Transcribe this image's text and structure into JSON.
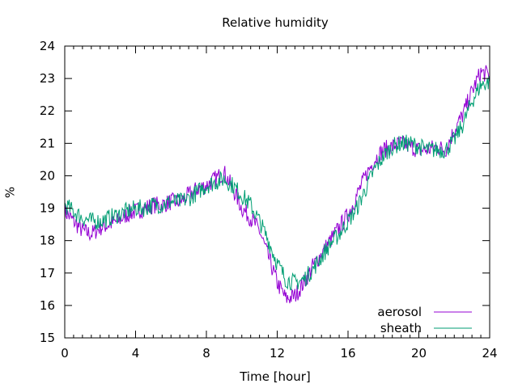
{
  "chart_data": {
    "type": "line",
    "title": "Relative humidity",
    "xlabel": "Time [hour]",
    "ylabel": "%",
    "xlim": [
      0,
      24
    ],
    "ylim": [
      15,
      24
    ],
    "x_ticks": [
      0,
      4,
      8,
      12,
      16,
      20,
      24
    ],
    "y_ticks": [
      15,
      16,
      17,
      18,
      19,
      20,
      21,
      22,
      23,
      24
    ],
    "grid": false,
    "legend_position": "bottom-right",
    "series": [
      {
        "name": "aerosol",
        "color": "#9400d3",
        "x": [
          0,
          0.5,
          1,
          1.5,
          2,
          2.5,
          3,
          3.5,
          4,
          4.5,
          5,
          5.5,
          6,
          6.5,
          7,
          7.5,
          8,
          8.5,
          9,
          9.5,
          10,
          10.5,
          11,
          11.5,
          12,
          12.5,
          13,
          13.5,
          14,
          14.5,
          15,
          15.5,
          16,
          16.5,
          17,
          17.5,
          18,
          18.5,
          19,
          19.5,
          20,
          20.5,
          21,
          21.5,
          22,
          22.5,
          23,
          23.5,
          24
        ],
        "values": [
          18.9,
          18.6,
          18.3,
          18.2,
          18.4,
          18.5,
          18.6,
          18.8,
          18.9,
          19.0,
          19.1,
          19.1,
          19.2,
          19.2,
          19.4,
          19.6,
          19.7,
          19.9,
          20.1,
          19.6,
          19.0,
          18.7,
          18.3,
          17.5,
          16.7,
          16.2,
          16.3,
          16.7,
          17.2,
          17.6,
          18.0,
          18.4,
          18.8,
          19.4,
          20.0,
          20.5,
          20.8,
          20.9,
          21.0,
          20.9,
          20.8,
          20.8,
          20.9,
          20.8,
          21.4,
          21.9,
          22.6,
          23.2,
          23.1
        ]
      },
      {
        "name": "sheath",
        "color": "#009e73",
        "x": [
          0,
          0.5,
          1,
          1.5,
          2,
          2.5,
          3,
          3.5,
          4,
          4.5,
          5,
          5.5,
          6,
          6.5,
          7,
          7.5,
          8,
          8.5,
          9,
          9.5,
          10,
          10.5,
          11,
          11.5,
          12,
          12.5,
          13,
          13.5,
          14,
          14.5,
          15,
          15.5,
          16,
          16.5,
          17,
          17.5,
          18,
          18.5,
          19,
          19.5,
          20,
          20.5,
          21,
          21.5,
          22,
          22.5,
          23,
          23.5,
          24
        ],
        "values": [
          19.1,
          18.9,
          18.7,
          18.6,
          18.6,
          18.7,
          18.8,
          18.9,
          19.0,
          19.0,
          19.1,
          19.1,
          19.2,
          19.2,
          19.3,
          19.5,
          19.7,
          19.8,
          19.9,
          19.7,
          19.4,
          19.1,
          18.6,
          18.0,
          17.3,
          16.8,
          16.7,
          16.8,
          17.1,
          17.5,
          17.9,
          18.2,
          18.6,
          19.0,
          19.6,
          20.2,
          20.6,
          20.9,
          21.0,
          21.0,
          20.9,
          20.8,
          20.8,
          20.8,
          21.1,
          21.6,
          22.3,
          22.8,
          22.9
        ]
      }
    ]
  }
}
